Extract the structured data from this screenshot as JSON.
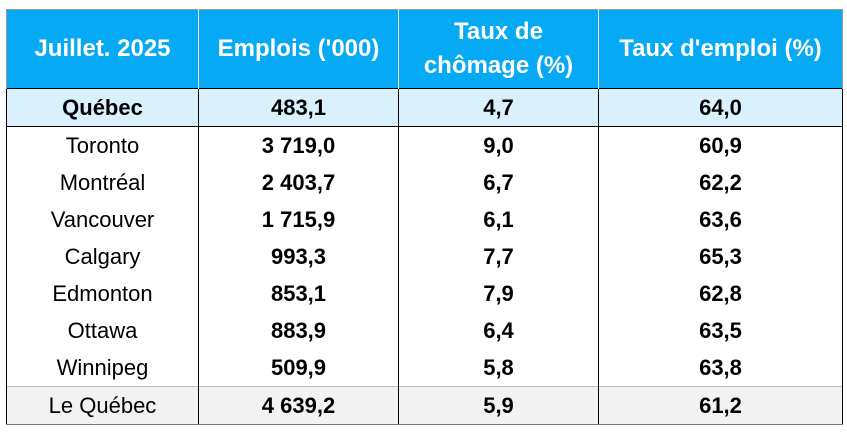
{
  "table": {
    "headers": [
      "Juillet. 2025",
      "Emplois ('000)",
      "Taux de chômage (%)",
      "Taux d'emploi (%)"
    ],
    "rows": [
      {
        "city": "Québec",
        "emplois": "483,1",
        "chomage": "4,7",
        "emploi": "64,0"
      },
      {
        "city": "Toronto",
        "emplois": "3 719,0",
        "chomage": "9,0",
        "emploi": "60,9"
      },
      {
        "city": "Montréal",
        "emplois": "2 403,7",
        "chomage": "6,7",
        "emploi": "62,2"
      },
      {
        "city": "Vancouver",
        "emplois": "1 715,9",
        "chomage": "6,1",
        "emploi": "63,6"
      },
      {
        "city": "Calgary",
        "emplois": "993,3",
        "chomage": "7,7",
        "emploi": "65,3"
      },
      {
        "city": "Edmonton",
        "emplois": "853,1",
        "chomage": "7,9",
        "emploi": "62,8"
      },
      {
        "city": "Ottawa",
        "emplois": "883,9",
        "chomage": "6,4",
        "emploi": "63,5"
      },
      {
        "city": "Winnipeg",
        "emplois": "509,9",
        "chomage": "5,8",
        "emploi": "63,8"
      },
      {
        "city": "Le Québec",
        "emplois": "4 639,2",
        "chomage": "5,9",
        "emploi": "61,2"
      }
    ]
  },
  "colors": {
    "header_bg": "#05a9f4",
    "header_text": "#ffffff",
    "highlight_bg": "#d9f1fc",
    "total_bg": "#f2f2f2"
  }
}
